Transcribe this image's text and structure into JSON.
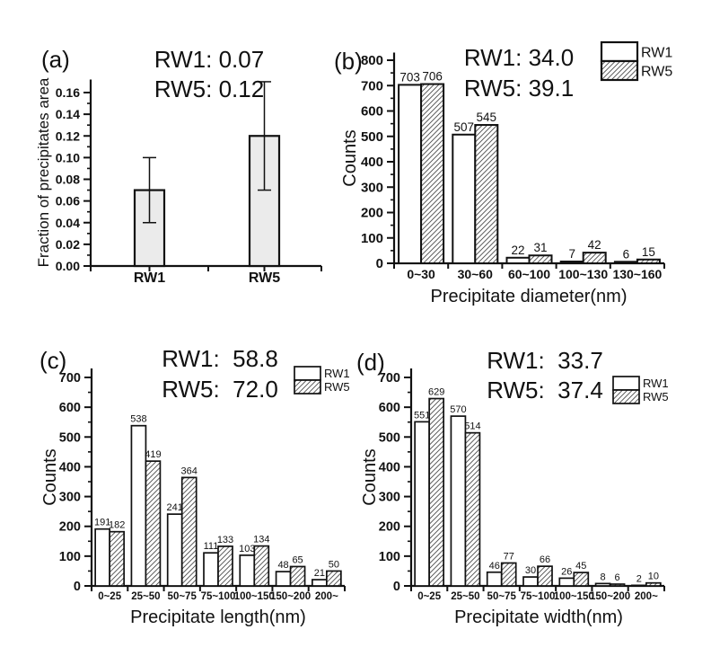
{
  "figure": {
    "background": "#ffffff",
    "axis_color": "#111111",
    "hatch_color": "#4d4d4d"
  },
  "chart_data": [
    {
      "id": "a",
      "panel_label": "(a)",
      "type": "bar",
      "annotations": [
        "RW1: 0.07",
        "RW5: 0.12"
      ],
      "xlabel": "",
      "ylabel": "Fraction of precipitates area",
      "categories": [
        "RW1",
        "RW5"
      ],
      "series": [
        {
          "name": "",
          "values": [
            0.07,
            0.12
          ],
          "hatched": false
        }
      ],
      "error_bars": [
        {
          "low": 0.04,
          "high": 0.1
        },
        {
          "low": 0.07,
          "high": 0.17
        }
      ],
      "ylim": [
        0,
        0.172
      ],
      "ytick_step": 0.02,
      "ytick_max": 0.16,
      "yminor_step": 0.01,
      "ytick_decimals": 2,
      "bar_fill": "#ebebeb",
      "grid": false,
      "legend": null,
      "show_values": false
    },
    {
      "id": "b",
      "panel_label": "(b)",
      "type": "bar",
      "annotations": [
        "RW1: 34.0",
        "RW5: 39.1"
      ],
      "xlabel": "Precipitate diameter(nm)",
      "ylabel": "Counts",
      "categories": [
        "0~30",
        "30~60",
        "60~100",
        "100~130",
        "130~160"
      ],
      "series": [
        {
          "name": "RW1",
          "values": [
            703,
            507,
            22,
            7,
            6
          ],
          "hatched": false
        },
        {
          "name": "RW5",
          "values": [
            706,
            545,
            31,
            42,
            15
          ],
          "hatched": true
        }
      ],
      "ylim": [
        0,
        830
      ],
      "ytick_step": 100,
      "ytick_max": 800,
      "yminor_step": 50,
      "ytick_decimals": 0,
      "bar_fill": "#ffffff",
      "grid": false,
      "legend": [
        "RW1",
        "RW5"
      ],
      "legend_position": "top-right",
      "show_values": true
    },
    {
      "id": "c",
      "panel_label": "(c)",
      "type": "bar",
      "annotations": [
        "RW1:  58.8",
        "RW5:  72.0"
      ],
      "xlabel": "Precipitate length(nm)",
      "ylabel": "Counts",
      "categories": [
        "0~25",
        "25~50",
        "50~75",
        "75~100",
        "100~150",
        "150~200",
        "200~"
      ],
      "series": [
        {
          "name": "RW1",
          "values": [
            191,
            538,
            241,
            111,
            103,
            48,
            21
          ],
          "hatched": false
        },
        {
          "name": "RW5",
          "values": [
            182,
            419,
            364,
            133,
            134,
            65,
            50
          ],
          "hatched": true
        }
      ],
      "ylim": [
        0,
        730
      ],
      "ytick_step": 100,
      "ytick_max": 700,
      "yminor_step": 50,
      "ytick_decimals": 0,
      "bar_fill": "#ffffff",
      "grid": false,
      "legend": [
        "RW1",
        "RW5"
      ],
      "legend_position": "top-right",
      "show_values": true
    },
    {
      "id": "d",
      "panel_label": "(d)",
      "type": "bar",
      "annotations": [
        "RW1:  33.7",
        "RW5:  37.4"
      ],
      "xlabel": "Precipitate width(nm)",
      "ylabel": "Counts",
      "categories": [
        "0~25",
        "25~50",
        "50~75",
        "75~100",
        "100~150",
        "150~200",
        "200~"
      ],
      "series": [
        {
          "name": "RW1",
          "values": [
            551,
            570,
            46,
            30,
            26,
            8,
            2
          ],
          "hatched": false
        },
        {
          "name": "RW5",
          "values": [
            629,
            514,
            77,
            66,
            45,
            6,
            10
          ],
          "hatched": true
        }
      ],
      "ylim": [
        0,
        730
      ],
      "ytick_step": 100,
      "ytick_max": 700,
      "yminor_step": 50,
      "ytick_decimals": 0,
      "bar_fill": "#ffffff",
      "grid": false,
      "legend": [
        "RW1",
        "RW5"
      ],
      "legend_position": "top-right",
      "show_values": true
    }
  ]
}
